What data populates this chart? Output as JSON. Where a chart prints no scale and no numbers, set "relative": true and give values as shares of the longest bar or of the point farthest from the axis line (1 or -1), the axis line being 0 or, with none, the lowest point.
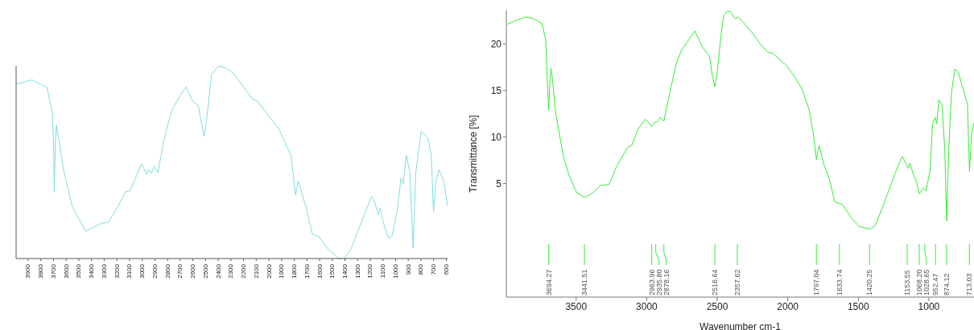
{
  "chart_data": [
    {
      "type": "line",
      "relative": true,
      "tick_labels": "x",
      "color": "#7fdcdc",
      "xlim": [
        3995,
        590
      ],
      "xticks": [
        3900,
        3800,
        3700,
        3600,
        3500,
        3400,
        3300,
        3200,
        3100,
        3000,
        2900,
        2800,
        2700,
        2600,
        2500,
        2400,
        2300,
        2200,
        2100,
        2000,
        1900,
        1800,
        1700,
        1600,
        1500,
        1400,
        1300,
        1200,
        1100,
        1000,
        900,
        800,
        700,
        600
      ],
      "x": [
        3991,
        3868,
        3752,
        3710,
        3699,
        3694,
        3685,
        3677,
        3658,
        3616,
        3552,
        3446,
        3319,
        3266,
        3192,
        3129,
        3097,
        3044,
        3006,
        2964,
        2949,
        2928,
        2907,
        2875,
        2833,
        2769,
        2706,
        2653,
        2600,
        2558,
        2511,
        2494,
        2452,
        2399,
        2343,
        2280,
        2132,
        2090,
        1920,
        1825,
        1789,
        1768,
        1709,
        1656,
        1603,
        1540,
        1455,
        1402,
        1349,
        1264,
        1190,
        1169,
        1137,
        1122,
        1095,
        1057,
        1027,
        989,
        957,
        940,
        915,
        887,
        862,
        841,
        798,
        745,
        718,
        701,
        682,
        657,
        619,
        590
      ],
      "values": [
        0.906,
        0.927,
        0.888,
        0.765,
        0.591,
        0.344,
        0.591,
        0.692,
        0.62,
        0.446,
        0.271,
        0.141,
        0.184,
        0.187,
        0.271,
        0.348,
        0.351,
        0.431,
        0.492,
        0.438,
        0.463,
        0.443,
        0.477,
        0.446,
        0.605,
        0.765,
        0.84,
        0.891,
        0.816,
        0.794,
        0.634,
        0.707,
        0.954,
        1,
        0.99,
        0.961,
        0.83,
        0.816,
        0.671,
        0.533,
        0.329,
        0.402,
        0.271,
        0.126,
        0.112,
        0.054,
        0.003,
        0,
        0.054,
        0.199,
        0.322,
        0.3,
        0.228,
        0.26,
        0.184,
        0.104,
        0.119,
        0.242,
        0.417,
        0.388,
        0.536,
        0.446,
        0.054,
        0.446,
        0.66,
        0.627,
        0.533,
        0.242,
        0.402,
        0.46,
        0.402,
        0.271
      ]
    },
    {
      "type": "line",
      "color": "#33ee33",
      "xlabel": "Wavenumber cm-1",
      "ylabel": "Transmittance [%]",
      "xlim": [
        3995,
        680
      ],
      "ylim": [
        -7.2,
        23.6
      ],
      "xticks": [
        3500,
        3000,
        2500,
        2000,
        1500,
        1000
      ],
      "yticks": [
        5,
        10,
        15,
        20
      ],
      "x": [
        3991,
        3915,
        3858,
        3800,
        3743,
        3715,
        3705,
        3694,
        3686,
        3679,
        3667,
        3648,
        3620,
        3591,
        3553,
        3496,
        3439,
        3382,
        3325,
        3268,
        3211,
        3135,
        3106,
        3059,
        3011,
        2983,
        2964,
        2945,
        2926,
        2907,
        2878,
        2830,
        2792,
        2754,
        2659,
        2602,
        2555,
        2536,
        2517,
        2498,
        2473,
        2454,
        2430,
        2409,
        2371,
        2352,
        2314,
        2257,
        2200,
        2143,
        2105,
        2010,
        1952,
        1895,
        1848,
        1819,
        1797,
        1778,
        1743,
        1705,
        1667,
        1634,
        1610,
        1553,
        1496,
        1420,
        1382,
        1325,
        1268,
        1211,
        1188,
        1163,
        1144,
        1135,
        1106,
        1087,
        1068,
        1040,
        1021,
        992,
        973,
        954,
        944,
        929,
        906,
        887,
        874,
        859,
        840,
        816,
        792,
        764,
        726,
        712,
        697,
        680
      ],
      "values": [
        22.1,
        22.6,
        22.9,
        22.7,
        22.2,
        20.4,
        16.1,
        12.9,
        16.1,
        17.4,
        16.1,
        12.9,
        10.4,
        8,
        6,
        4,
        3.5,
        4,
        4.8,
        4.9,
        6.9,
        8.9,
        9.1,
        10.9,
        11.9,
        11.5,
        11.1,
        11.6,
        11.6,
        12.1,
        11.7,
        15.2,
        17.8,
        19.3,
        21.4,
        19.6,
        18.7,
        16.7,
        15.4,
        17.3,
        21,
        23,
        23.5,
        23.5,
        22.7,
        22.9,
        22.3,
        21.3,
        20.1,
        19.1,
        19,
        17.7,
        16.5,
        15,
        12.9,
        10.4,
        7.6,
        9.1,
        7,
        5.5,
        3,
        2.9,
        2.7,
        1.4,
        0.4,
        0.1,
        0.4,
        2.6,
        4.9,
        7.2,
        7.9,
        7.2,
        6.6,
        7.2,
        5.8,
        5.2,
        3.9,
        4.5,
        4.2,
        6.3,
        11.5,
        12.1,
        11.4,
        14,
        13.4,
        8.6,
        1,
        8.6,
        14.7,
        17.3,
        17,
        15.5,
        13.5,
        6.3,
        10.4,
        11.5
      ],
      "annotations": [
        {
          "text": "3694.27",
          "x": 3694.27
        },
        {
          "text": "3441.51",
          "x": 3441.51
        },
        {
          "text": "2963.96",
          "x": 2963.96
        },
        {
          "text": "2935.80",
          "x": 2935.8
        },
        {
          "text": "2878.16",
          "x": 2878.16
        },
        {
          "text": "2516.64",
          "x": 2516.64
        },
        {
          "text": "2357.62",
          "x": 2357.62
        },
        {
          "text": "1797.04",
          "x": 1797.04
        },
        {
          "text": "1633.74",
          "x": 1633.74
        },
        {
          "text": "1420.25",
          "x": 1420.25
        },
        {
          "text": "1153.55",
          "x": 1153.55
        },
        {
          "text": "1068.20",
          "x": 1068.2
        },
        {
          "text": "1028.65",
          "x": 1028.65
        },
        {
          "text": "952.47",
          "x": 952.47
        },
        {
          "text": "874.12",
          "x": 874.12
        },
        {
          "text": "713.03",
          "x": 713.03
        }
      ]
    }
  ]
}
